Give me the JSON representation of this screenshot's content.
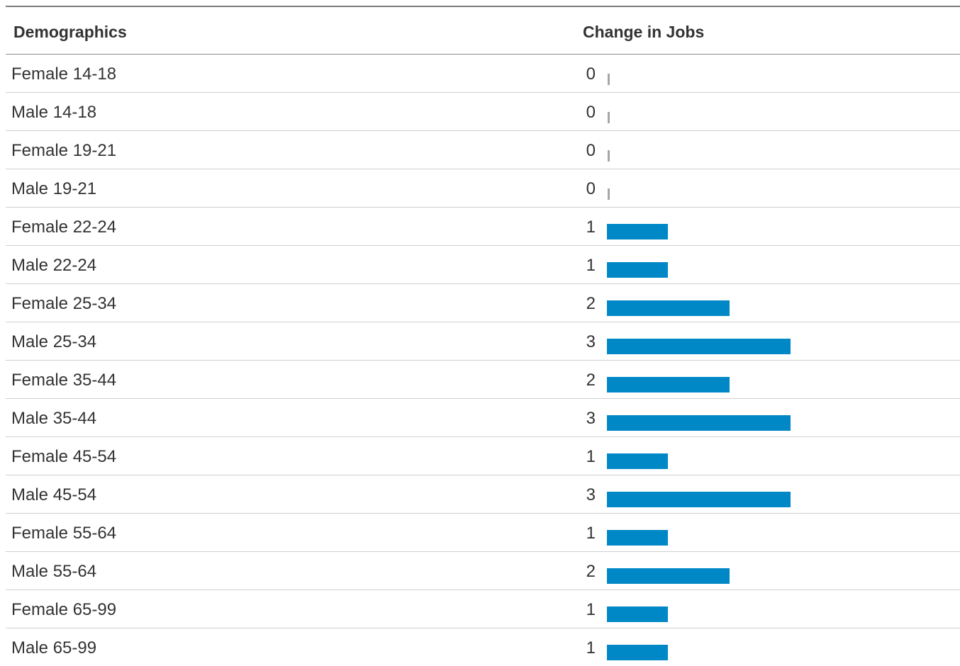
{
  "chart_data": {
    "type": "bar",
    "orientation": "horizontal",
    "header": {
      "label_column": "Demographics",
      "value_column": "Change in Jobs"
    },
    "categories": [
      "Female 14-18",
      "Male 14-18",
      "Female 19-21",
      "Male 19-21",
      "Female 22-24",
      "Male 22-24",
      "Female 25-34",
      "Male 25-34",
      "Female 35-44",
      "Male 35-44",
      "Female 45-54",
      "Male 45-54",
      "Female 55-64",
      "Male 55-64",
      "Female 65-99",
      "Male 65-99"
    ],
    "values": [
      0,
      0,
      0,
      0,
      1,
      1,
      2,
      3,
      2,
      3,
      1,
      3,
      1,
      2,
      1,
      1
    ],
    "xlim": [
      0,
      3
    ],
    "bar_color": "#0088c6",
    "zero_marker_color": "#a6a6a6"
  }
}
